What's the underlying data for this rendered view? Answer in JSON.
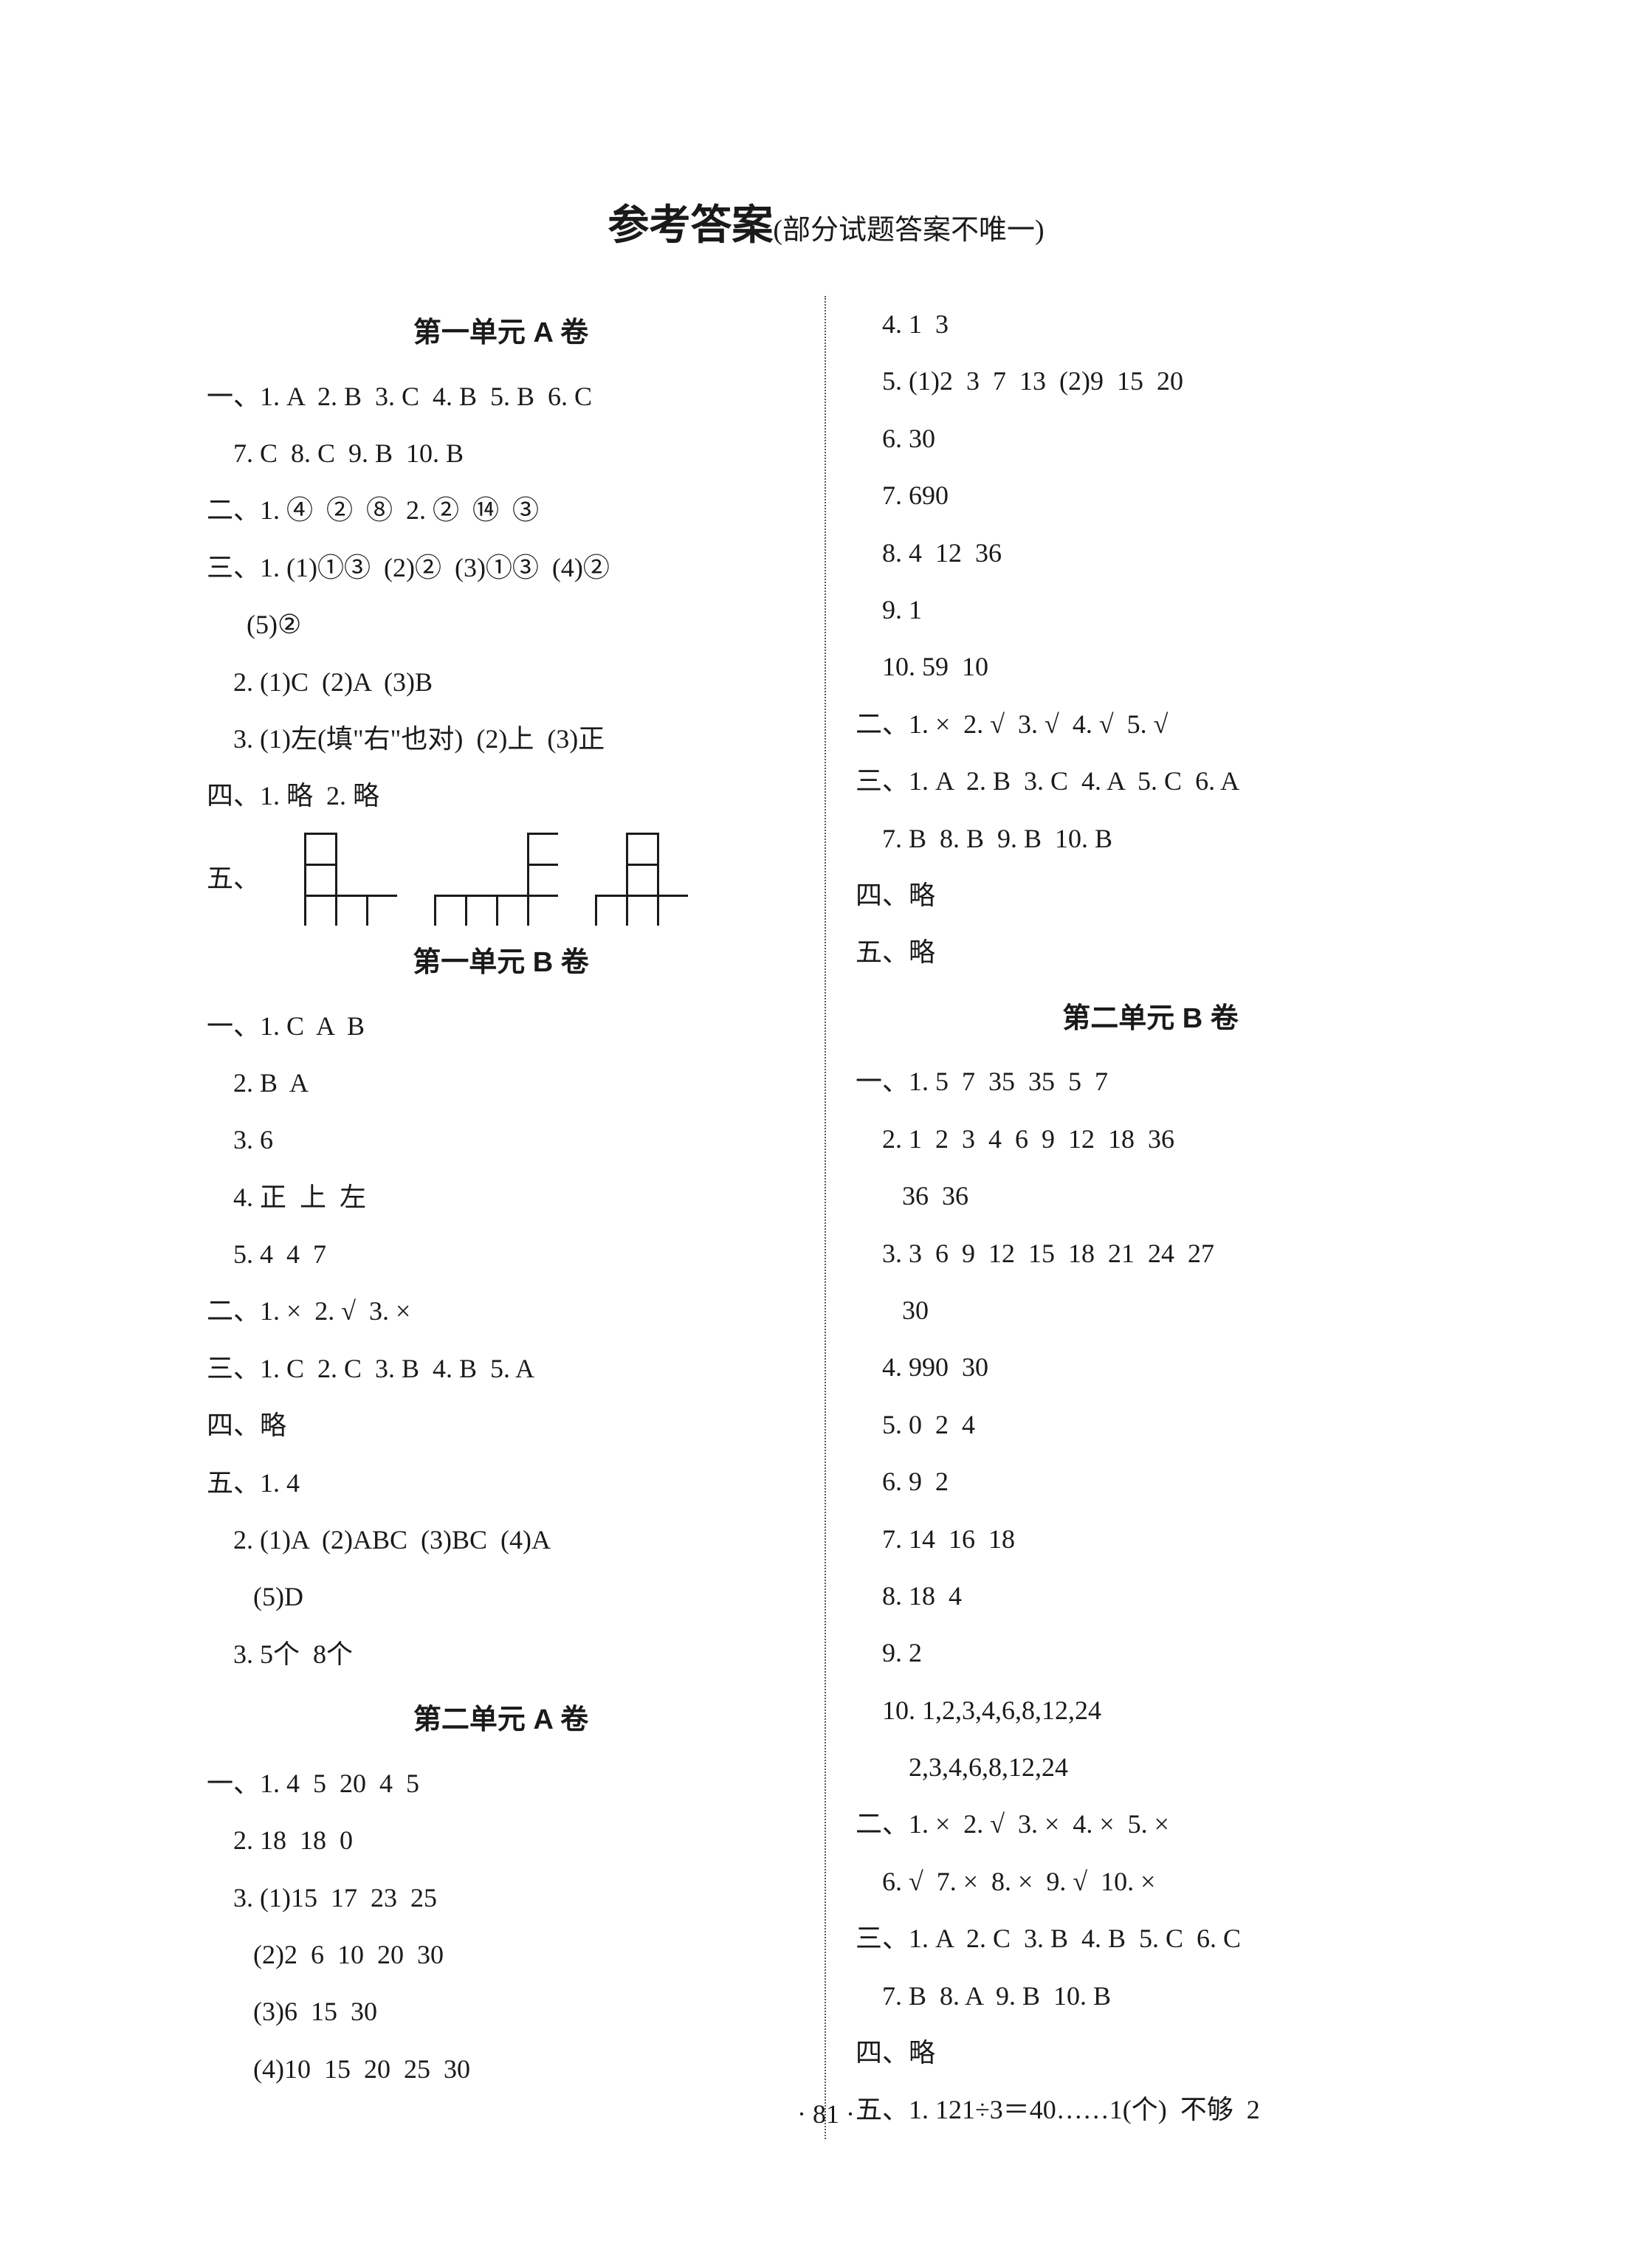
{
  "title_main": "参考答案",
  "title_sub": "(部分试题答案不唯一)",
  "page_number": "· 81 ·",
  "fig_label": "五、",
  "fig_cell": 42,
  "fig_stroke": "#1a1a1a",
  "headers": {
    "u1a": "第一单元  A 卷",
    "u1b": "第一单元  B 卷",
    "u2a": "第二单元  A 卷",
    "u2b": "第二单元  B 卷"
  },
  "left": {
    "u1a": [
      "一、1. A  2. B  3. C  4. B  5. B  6. C",
      "    7. C  8. C  9. B  10. B",
      "二、1. ④  ②  ⑧  2. ②  ⑭  ③",
      "三、1. (1)①③  (2)②  (3)①③  (4)②",
      "      (5)②",
      "    2. (1)C  (2)A  (3)B",
      "    3. (1)左(填\"右\"也对)  (2)上  (3)正",
      "四、1. 略  2. 略"
    ],
    "u1b": [
      "一、1. C  A  B",
      "    2. B  A",
      "    3. 6",
      "    4. 正  上  左",
      "    5. 4  4  7",
      "二、1. ×  2. √  3. ×",
      "三、1. C  2. C  3. B  4. B  5. A",
      "四、略",
      "五、1. 4",
      "    2. (1)A  (2)ABC  (3)BC  (4)A",
      "       (5)D",
      "    3. 5个  8个"
    ],
    "u2a": [
      "一、1. 4  5  20  4  5",
      "    2. 18  18  0",
      "    3. (1)15  17  23  25",
      "       (2)2  6  10  20  30",
      "       (3)6  15  30",
      "       (4)10  15  20  25  30"
    ]
  },
  "right": {
    "u2a_cont": [
      "    4. 1  3",
      "    5. (1)2  3  7  13  (2)9  15  20",
      "    6. 30",
      "    7. 690",
      "    8. 4  12  36",
      "    9. 1",
      "    10. 59  10",
      "二、1. ×  2. √  3. √  4. √  5. √",
      "三、1. A  2. B  3. C  4. A  5. C  6. A",
      "    7. B  8. B  9. B  10. B",
      "四、略",
      "五、略"
    ],
    "u2b": [
      "一、1. 5  7  35  35  5  7",
      "    2. 1  2  3  4  6  9  12  18  36",
      "       36  36",
      "    3. 3  6  9  12  15  18  21  24  27",
      "       30",
      "    4. 990  30",
      "    5. 0  2  4",
      "    6. 9  2",
      "    7. 14  16  18",
      "    8. 18  4",
      "    9. 2",
      "    10. 1,2,3,4,6,8,12,24",
      "        2,3,4,6,8,12,24",
      "二、1. ×  2. √  3. ×  4. ×  5. ×",
      "    6. √  7. ×  8. ×  9. √  10. ×",
      "三、1. A  2. C  3. B  4. B  5. C  6. C",
      "    7. B  8. A  9. B  10. B",
      "四、略",
      "五、1. 121÷3＝40……1(个)  不够  2"
    ]
  }
}
